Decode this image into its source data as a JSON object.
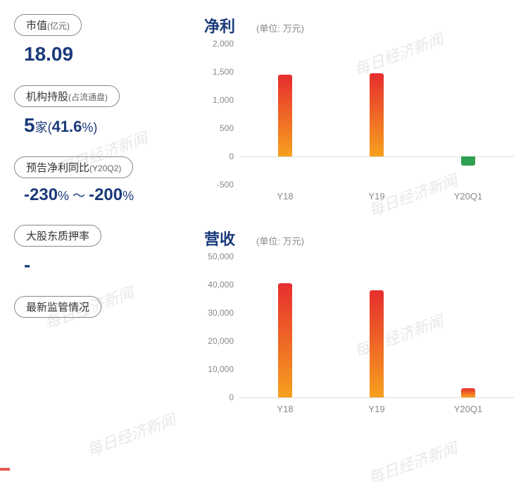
{
  "watermark_text": "每日经济新闻",
  "left_panel": {
    "market_cap": {
      "label": "市值",
      "label_sub": "(亿元)",
      "value": "18.09"
    },
    "inst_holding": {
      "label": "机构持股",
      "label_sub": "(占流通盘)",
      "value_main": "5",
      "value_unit": "家",
      "value_pct": "41.6",
      "value_pct_unit": "%"
    },
    "forecast": {
      "label": "预告净利同比",
      "label_sub": "(Y20Q2)",
      "value_low": "-230",
      "tilde": " ～ ",
      "value_high": "-200",
      "pct": "%"
    },
    "pledge": {
      "label": "大股东质押率",
      "value": "-"
    },
    "regulation": {
      "label": "最新监管情况"
    }
  },
  "charts": {
    "profit": {
      "title": "净利",
      "unit": "(单位: 万元)",
      "type": "bar",
      "categories": [
        "Y18",
        "Y19",
        "Y20Q1"
      ],
      "values": [
        1450,
        1480,
        -160
      ],
      "ylim": [
        -500,
        2000
      ],
      "yticks": [
        -500,
        0,
        500,
        1000,
        1500,
        2000
      ],
      "bar_gradient_top": "#e62e2e",
      "bar_gradient_bottom": "#f7a01e",
      "neg_color": "#2e9e4f",
      "grid_color": "#dddddd",
      "label_color": "#888888",
      "title_color": "#1a3a7a"
    },
    "revenue": {
      "title": "营收",
      "unit": "(单位: 万元)",
      "type": "bar",
      "categories": [
        "Y18",
        "Y19",
        "Y20Q1"
      ],
      "values": [
        40500,
        38000,
        3200
      ],
      "ylim": [
        0,
        50000
      ],
      "yticks": [
        0,
        10000,
        20000,
        30000,
        40000,
        50000
      ],
      "bar_gradient_top": "#e62e2e",
      "bar_gradient_bottom": "#f7a01e",
      "grid_color": "#dddddd",
      "label_color": "#888888",
      "title_color": "#1a3a7a"
    }
  }
}
